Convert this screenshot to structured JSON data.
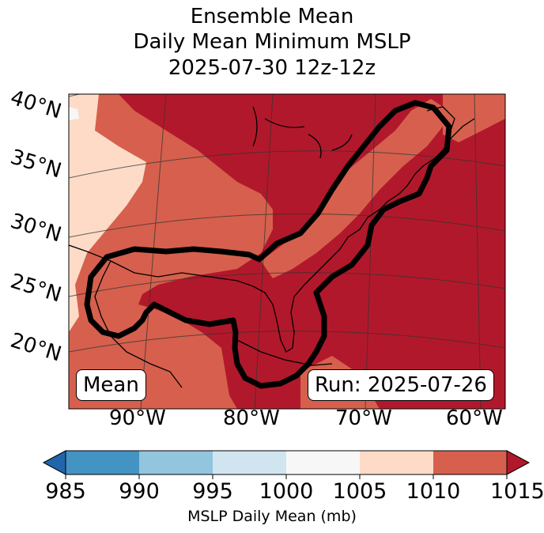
{
  "title_lines": [
    "Ensemble Mean",
    "Daily Mean Minimum MSLP",
    "2025-07-30 12z-12z"
  ],
  "lat_labels": [
    "40°N",
    "35°N",
    "30°N",
    "25°N",
    "20°N"
  ],
  "lon_labels": [
    "90°W",
    "80°W",
    "70°W",
    "60°W"
  ],
  "left_box": "Mean",
  "right_box": "Run: 2025-07-26",
  "colorbar": {
    "ticks": [
      "985",
      "990",
      "995",
      "1000",
      "1005",
      "1010",
      "1015"
    ],
    "label": "MSLP Daily Mean (mb)",
    "colors": {
      "under": "#2166ac",
      "985-990": "#4393c3",
      "990-995": "#92c5de",
      "995-1000": "#d1e5f0",
      "1000-1005": "#f7f7f7",
      "1005-1010": "#fddbc7",
      "1010-1015": "#d6604d",
      "over": "#b2182b"
    }
  },
  "map_colors": {
    "lt1005": "#f7f7f7",
    "r1005_1010": "#fddbc7",
    "r1010_1015": "#d6604d",
    "gt1015": "#b2182b"
  }
}
